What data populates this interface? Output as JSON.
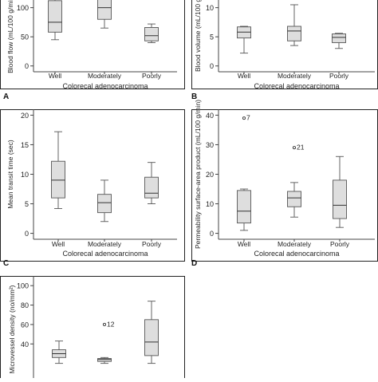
{
  "figure": {
    "panels": [
      {
        "letter": "A",
        "ylabel": "Blood flow (mL/100 g/min)",
        "xlabel": "Colorecal adenocarcinoma"
      },
      {
        "letter": "B",
        "ylabel": "Blood volume (mL/100 g)",
        "xlabel": "Colorecal adenocarcinoma"
      },
      {
        "letter": "C",
        "ylabel": "Mean transit time (sec)",
        "xlabel": "Colorecal adenocarcinoma"
      },
      {
        "letter": "D",
        "ylabel": "Permeability surface-area product (mL/100 g/min)",
        "xlabel": "Colorecal adenocarcinoma"
      },
      {
        "letter": "",
        "ylabel": "Microvessel density (no/mm²)",
        "xlabel": ""
      }
    ]
  },
  "chart_data": [
    {
      "type": "boxplot",
      "panel": "A",
      "ylabel": "Blood flow (mL/100 g/min)",
      "xlabel": "Colorecal adenocarcinoma",
      "categories": [
        "Well",
        "Moderately",
        "Poorly"
      ],
      "yticks": [
        0,
        50,
        100
      ],
      "ylim": [
        -10,
        120
      ],
      "boxes": [
        {
          "min": 45,
          "q1": 58,
          "median": 75,
          "q3": 112,
          "max": 125
        },
        {
          "min": 65,
          "q1": 80,
          "median": 100,
          "q3": 120,
          "max": 125
        },
        {
          "min": 40,
          "q1": 43,
          "median": 52,
          "q3": 66,
          "max": 72
        }
      ],
      "outliers": []
    },
    {
      "type": "boxplot",
      "panel": "B",
      "ylabel": "Blood volume (mL/100 g)",
      "xlabel": "Colorecal adenocarcinoma",
      "categories": [
        "Well",
        "Moderately",
        "Poorly"
      ],
      "yticks": [
        0,
        5,
        10
      ],
      "ylim": [
        -1,
        12
      ],
      "boxes": [
        {
          "min": 2.2,
          "q1": 4.8,
          "median": 5.8,
          "q3": 6.7,
          "max": 6.8
        },
        {
          "min": 3.5,
          "q1": 4.3,
          "median": 6.0,
          "q3": 6.8,
          "max": 10.5
        },
        {
          "min": 3.0,
          "q1": 4.0,
          "median": 4.9,
          "q3": 5.5,
          "max": 5.6
        }
      ],
      "outliers": []
    },
    {
      "type": "boxplot",
      "panel": "C",
      "ylabel": "Mean transit time (sec)",
      "xlabel": "Colorecal adenocarcinoma",
      "categories": [
        "Well",
        "Moderately",
        "Poorly"
      ],
      "yticks": [
        0,
        5,
        10,
        15,
        20
      ],
      "ylim": [
        -1,
        21
      ],
      "boxes": [
        {
          "min": 4.2,
          "q1": 6.0,
          "median": 9.0,
          "q3": 12.2,
          "max": 17.2
        },
        {
          "min": 2.0,
          "q1": 3.5,
          "median": 5.2,
          "q3": 6.6,
          "max": 9.0
        },
        {
          "min": 5.0,
          "q1": 6.0,
          "median": 6.8,
          "q3": 9.5,
          "max": 12.0
        }
      ],
      "outliers": []
    },
    {
      "type": "boxplot",
      "panel": "D",
      "ylabel": "Permeability surface-area product (mL/100 g/min)",
      "xlabel": "Colorecal adenocarcinoma",
      "categories": [
        "Well",
        "Moderately",
        "Poorly"
      ],
      "yticks": [
        0,
        10,
        20,
        30,
        40
      ],
      "ylim": [
        -2,
        42
      ],
      "boxes": [
        {
          "min": 1.0,
          "q1": 3.5,
          "median": 7.5,
          "q3": 14.5,
          "max": 15.0
        },
        {
          "min": 5.5,
          "q1": 9.0,
          "median": 12.0,
          "q3": 14.2,
          "max": 17.2
        },
        {
          "min": 2.0,
          "q1": 5.0,
          "median": 9.5,
          "q3": 18.0,
          "max": 26.0
        }
      ],
      "outliers": [
        {
          "category": "Well",
          "value": 39,
          "label": "7"
        },
        {
          "category": "Moderately",
          "value": 29,
          "label": "21"
        }
      ]
    },
    {
      "type": "boxplot",
      "panel": "",
      "ylabel": "Microvessel density (no/mm²)",
      "xlabel": "",
      "categories": [
        "",
        "",
        ""
      ],
      "yticks": [
        40,
        60,
        80,
        100
      ],
      "ylim": [
        0,
        110
      ],
      "boxes": [
        {
          "min": 20,
          "q1": 26,
          "median": 30,
          "q3": 34,
          "max": 43
        },
        {
          "min": 20,
          "q1": 22,
          "median": 24,
          "q3": 25,
          "max": 26
        },
        {
          "min": 20,
          "q1": 28,
          "median": 42,
          "q3": 65,
          "max": 84
        }
      ],
      "outliers": [
        {
          "category": 1,
          "value": 60,
          "label": "12"
        }
      ]
    }
  ]
}
